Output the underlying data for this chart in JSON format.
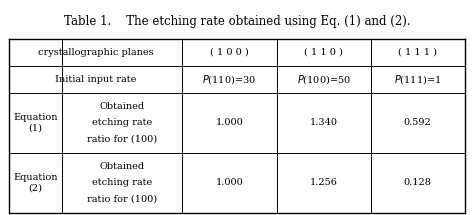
{
  "title": "Table 1.    The etching rate obtained using Eq. (1) and (2).",
  "title_fontsize": 8.5,
  "bg_color": "#ffffff",
  "text_color": "#000000",
  "header_row1": [
    "crystallographic planes",
    "( 1 0 0 )",
    "( 1 1 0 )",
    "( 1 1 1 )"
  ],
  "header_row2": [
    "Initial input rate",
    "P(110)=30",
    "P(100)=50",
    "P(111)=1"
  ],
  "eq1_label": [
    "Equation",
    "(1)"
  ],
  "eq1_desc": [
    "Obtained",
    "etching rate",
    "ratio for (100)"
  ],
  "eq1_values": [
    "1.000",
    "1.340",
    "0.592"
  ],
  "eq2_label": [
    "Equation",
    "(2)"
  ],
  "eq2_desc": [
    "Obtained",
    "etching rate",
    "ratio for (100)"
  ],
  "eq2_values": [
    "1.000",
    "1.256",
    "0.128"
  ],
  "font_size": 7.0
}
